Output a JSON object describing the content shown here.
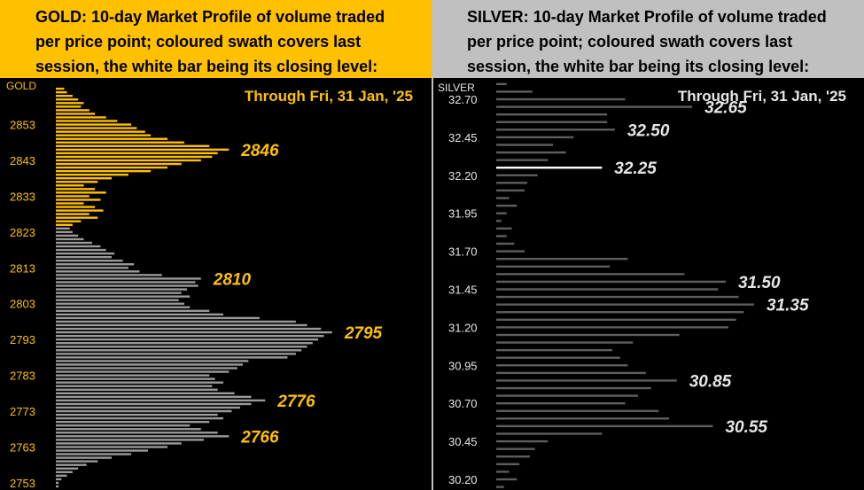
{
  "colors": {
    "gold_accent": "#ffc000",
    "gold_header_bg": "#ffc000",
    "silver_header_bg": "#c0c0c0",
    "profile_bar": "#9a9a9a",
    "silver_bar": "#5e5e5e",
    "close_bar": "#ffffff",
    "background": "#000000",
    "silver_text": "#e6e6e6"
  },
  "chart_data": [
    {
      "type": "bar",
      "orientation": "horizontal",
      "title": "GOLD:  10-day Market Profile of volume traded\nper price point; coloured swath covers last\nsession, the white bar being its closing level:",
      "corner_label": "GOLD",
      "date_label": "Through Fri, 31 Jan, '25",
      "ylim": [
        2751,
        2866
      ],
      "yticks": [
        2853,
        2843,
        2833,
        2823,
        2813,
        2803,
        2793,
        2783,
        2773,
        2763,
        2753
      ],
      "price_step": 1,
      "volume_max": 100,
      "closing_level": null,
      "annotations": [
        {
          "label": "2846",
          "price": 2846
        },
        {
          "label": "2810",
          "price": 2810
        },
        {
          "label": "2795",
          "price": 2795
        },
        {
          "label": "2776",
          "price": 2776
        },
        {
          "label": "2766",
          "price": 2766
        }
      ],
      "bars": [
        {
          "price": 2752,
          "volume": 1,
          "last_session": false
        },
        {
          "price": 2753,
          "volume": 1,
          "last_session": false
        },
        {
          "price": 2754,
          "volume": 2,
          "last_session": false
        },
        {
          "price": 2755,
          "volume": 4,
          "last_session": false
        },
        {
          "price": 2756,
          "volume": 6,
          "last_session": false
        },
        {
          "price": 2757,
          "volume": 8,
          "last_session": false
        },
        {
          "price": 2758,
          "volume": 11,
          "last_session": false
        },
        {
          "price": 2759,
          "volume": 15,
          "last_session": false
        },
        {
          "price": 2760,
          "volume": 20,
          "last_session": false
        },
        {
          "price": 2761,
          "volume": 27,
          "last_session": false
        },
        {
          "price": 2762,
          "volume": 33,
          "last_session": false
        },
        {
          "price": 2763,
          "volume": 40,
          "last_session": false
        },
        {
          "price": 2764,
          "volume": 45,
          "last_session": false
        },
        {
          "price": 2765,
          "volume": 53,
          "last_session": false
        },
        {
          "price": 2766,
          "volume": 62,
          "last_session": false
        },
        {
          "price": 2767,
          "volume": 58,
          "last_session": false
        },
        {
          "price": 2768,
          "volume": 52,
          "last_session": false
        },
        {
          "price": 2769,
          "volume": 48,
          "last_session": false
        },
        {
          "price": 2770,
          "volume": 55,
          "last_session": false
        },
        {
          "price": 2771,
          "volume": 60,
          "last_session": false
        },
        {
          "price": 2772,
          "volume": 58,
          "last_session": false
        },
        {
          "price": 2773,
          "volume": 63,
          "last_session": false
        },
        {
          "price": 2774,
          "volume": 66,
          "last_session": false
        },
        {
          "price": 2775,
          "volume": 70,
          "last_session": false
        },
        {
          "price": 2776,
          "volume": 75,
          "last_session": false
        },
        {
          "price": 2777,
          "volume": 70,
          "last_session": false
        },
        {
          "price": 2778,
          "volume": 64,
          "last_session": false
        },
        {
          "price": 2779,
          "volume": 58,
          "last_session": false
        },
        {
          "price": 2780,
          "volume": 56,
          "last_session": false
        },
        {
          "price": 2781,
          "volume": 60,
          "last_session": false
        },
        {
          "price": 2782,
          "volume": 57,
          "last_session": false
        },
        {
          "price": 2783,
          "volume": 55,
          "last_session": false
        },
        {
          "price": 2784,
          "volume": 62,
          "last_session": false
        },
        {
          "price": 2785,
          "volume": 65,
          "last_session": false
        },
        {
          "price": 2786,
          "volume": 67,
          "last_session": false
        },
        {
          "price": 2787,
          "volume": 69,
          "last_session": false
        },
        {
          "price": 2788,
          "volume": 83,
          "last_session": false
        },
        {
          "price": 2789,
          "volume": 86,
          "last_session": false
        },
        {
          "price": 2790,
          "volume": 88,
          "last_session": false
        },
        {
          "price": 2791,
          "volume": 90,
          "last_session": false
        },
        {
          "price": 2792,
          "volume": 92,
          "last_session": false
        },
        {
          "price": 2793,
          "volume": 94,
          "last_session": false
        },
        {
          "price": 2794,
          "volume": 96,
          "last_session": false
        },
        {
          "price": 2795,
          "volume": 99,
          "last_session": false
        },
        {
          "price": 2796,
          "volume": 95,
          "last_session": false
        },
        {
          "price": 2797,
          "volume": 90,
          "last_session": false
        },
        {
          "price": 2798,
          "volume": 86,
          "last_session": false
        },
        {
          "price": 2799,
          "volume": 73,
          "last_session": false
        },
        {
          "price": 2800,
          "volume": 60,
          "last_session": false
        },
        {
          "price": 2801,
          "volume": 55,
          "last_session": false
        },
        {
          "price": 2802,
          "volume": 48,
          "last_session": false
        },
        {
          "price": 2803,
          "volume": 46,
          "last_session": false
        },
        {
          "price": 2804,
          "volume": 44,
          "last_session": false
        },
        {
          "price": 2805,
          "volume": 48,
          "last_session": false
        },
        {
          "price": 2806,
          "volume": 45,
          "last_session": false
        },
        {
          "price": 2807,
          "volume": 47,
          "last_session": false
        },
        {
          "price": 2808,
          "volume": 51,
          "last_session": false
        },
        {
          "price": 2809,
          "volume": 50,
          "last_session": false
        },
        {
          "price": 2810,
          "volume": 52,
          "last_session": false
        },
        {
          "price": 2811,
          "volume": 38,
          "last_session": false
        },
        {
          "price": 2812,
          "volume": 30,
          "last_session": false
        },
        {
          "price": 2813,
          "volume": 26,
          "last_session": false
        },
        {
          "price": 2814,
          "volume": 28,
          "last_session": false
        },
        {
          "price": 2815,
          "volume": 24,
          "last_session": false
        },
        {
          "price": 2816,
          "volume": 20,
          "last_session": false
        },
        {
          "price": 2817,
          "volume": 21,
          "last_session": false
        },
        {
          "price": 2818,
          "volume": 18,
          "last_session": false
        },
        {
          "price": 2819,
          "volume": 16,
          "last_session": false
        },
        {
          "price": 2820,
          "volume": 13,
          "last_session": false
        },
        {
          "price": 2821,
          "volume": 10,
          "last_session": false
        },
        {
          "price": 2822,
          "volume": 8,
          "last_session": false
        },
        {
          "price": 2823,
          "volume": 6,
          "last_session": false
        },
        {
          "price": 2824,
          "volume": 5,
          "last_session": false
        },
        {
          "price": 2825,
          "volume": 6,
          "last_session": true
        },
        {
          "price": 2826,
          "volume": 9,
          "last_session": true
        },
        {
          "price": 2827,
          "volume": 15,
          "last_session": true
        },
        {
          "price": 2828,
          "volume": 12,
          "last_session": true
        },
        {
          "price": 2829,
          "volume": 17,
          "last_session": true
        },
        {
          "price": 2830,
          "volume": 14,
          "last_session": true
        },
        {
          "price": 2831,
          "volume": 10,
          "last_session": true
        },
        {
          "price": 2832,
          "volume": 16,
          "last_session": true
        },
        {
          "price": 2833,
          "volume": 12,
          "last_session": true
        },
        {
          "price": 2834,
          "volume": 18,
          "last_session": true
        },
        {
          "price": 2835,
          "volume": 14,
          "last_session": true
        },
        {
          "price": 2836,
          "volume": 10,
          "last_session": true
        },
        {
          "price": 2837,
          "volume": 15,
          "last_session": true
        },
        {
          "price": 2838,
          "volume": 20,
          "last_session": true
        },
        {
          "price": 2839,
          "volume": 26,
          "last_session": true
        },
        {
          "price": 2840,
          "volume": 34,
          "last_session": true
        },
        {
          "price": 2841,
          "volume": 40,
          "last_session": true
        },
        {
          "price": 2842,
          "volume": 45,
          "last_session": true
        },
        {
          "price": 2843,
          "volume": 52,
          "last_session": true
        },
        {
          "price": 2844,
          "volume": 56,
          "last_session": true
        },
        {
          "price": 2845,
          "volume": 58,
          "last_session": true
        },
        {
          "price": 2846,
          "volume": 62,
          "last_session": true
        },
        {
          "price": 2847,
          "volume": 55,
          "last_session": true
        },
        {
          "price": 2848,
          "volume": 46,
          "last_session": true
        },
        {
          "price": 2849,
          "volume": 40,
          "last_session": true
        },
        {
          "price": 2850,
          "volume": 34,
          "last_session": true
        },
        {
          "price": 2851,
          "volume": 32,
          "last_session": true
        },
        {
          "price": 2852,
          "volume": 29,
          "last_session": true
        },
        {
          "price": 2853,
          "volume": 27,
          "last_session": true
        },
        {
          "price": 2854,
          "volume": 22,
          "last_session": true
        },
        {
          "price": 2855,
          "volume": 18,
          "last_session": true
        },
        {
          "price": 2856,
          "volume": 14,
          "last_session": true
        },
        {
          "price": 2857,
          "volume": 12,
          "last_session": true
        },
        {
          "price": 2858,
          "volume": 9,
          "last_session": true
        },
        {
          "price": 2859,
          "volume": 10,
          "last_session": true
        },
        {
          "price": 2860,
          "volume": 8,
          "last_session": true
        },
        {
          "price": 2861,
          "volume": 6,
          "last_session": true
        },
        {
          "price": 2862,
          "volume": 4,
          "last_session": true
        },
        {
          "price": 2863,
          "volume": 3,
          "last_session": true
        }
      ]
    },
    {
      "type": "bar",
      "orientation": "horizontal",
      "title": "SILVER:  10-day Market Profile of volume traded\nper price point; coloured swath covers last\nsession, the white bar being its closing level:",
      "corner_label": "SILVER",
      "date_label": "Through Fri, 31 Jan, '25",
      "ylim": [
        30.13,
        32.84
      ],
      "yticks": [
        32.7,
        32.45,
        32.2,
        31.95,
        31.7,
        31.45,
        31.2,
        30.95,
        30.7,
        30.45,
        30.2
      ],
      "price_step": 0.05,
      "volume_max": 100,
      "closing_level": 32.25,
      "annotations": [
        {
          "label": "32.65",
          "price": 32.65
        },
        {
          "label": "32.50",
          "price": 32.5
        },
        {
          "label": "32.25",
          "price": 32.25
        },
        {
          "label": "31.50",
          "price": 31.5
        },
        {
          "label": "31.35",
          "price": 31.35
        },
        {
          "label": "30.85",
          "price": 30.85
        },
        {
          "label": "30.55",
          "price": 30.55
        }
      ],
      "bars": [
        {
          "price": 30.15,
          "volume": 3
        },
        {
          "price": 30.2,
          "volume": 8
        },
        {
          "price": 30.25,
          "volume": 5
        },
        {
          "price": 30.3,
          "volume": 9
        },
        {
          "price": 30.35,
          "volume": 13
        },
        {
          "price": 30.4,
          "volume": 15
        },
        {
          "price": 30.45,
          "volume": 20
        },
        {
          "price": 30.5,
          "volume": 41
        },
        {
          "price": 30.55,
          "volume": 84
        },
        {
          "price": 30.6,
          "volume": 67
        },
        {
          "price": 30.65,
          "volume": 63
        },
        {
          "price": 30.7,
          "volume": 50
        },
        {
          "price": 30.75,
          "volume": 55
        },
        {
          "price": 30.8,
          "volume": 60
        },
        {
          "price": 30.85,
          "volume": 70
        },
        {
          "price": 30.9,
          "volume": 58
        },
        {
          "price": 30.95,
          "volume": 51
        },
        {
          "price": 31.0,
          "volume": 48
        },
        {
          "price": 31.05,
          "volume": 45
        },
        {
          "price": 31.1,
          "volume": 53
        },
        {
          "price": 31.15,
          "volume": 71
        },
        {
          "price": 31.2,
          "volume": 90
        },
        {
          "price": 31.25,
          "volume": 93
        },
        {
          "price": 31.3,
          "volume": 96
        },
        {
          "price": 31.35,
          "volume": 100
        },
        {
          "price": 31.4,
          "volume": 94
        },
        {
          "price": 31.45,
          "volume": 86
        },
        {
          "price": 31.5,
          "volume": 89
        },
        {
          "price": 31.55,
          "volume": 73
        },
        {
          "price": 31.6,
          "volume": 44
        },
        {
          "price": 31.65,
          "volume": 51
        },
        {
          "price": 31.7,
          "volume": 11
        },
        {
          "price": 31.75,
          "volume": 7
        },
        {
          "price": 31.8,
          "volume": 4
        },
        {
          "price": 31.85,
          "volume": 6
        },
        {
          "price": 31.9,
          "volume": 2
        },
        {
          "price": 31.95,
          "volume": 4
        },
        {
          "price": 32.0,
          "volume": 8
        },
        {
          "price": 32.05,
          "volume": 5
        },
        {
          "price": 32.1,
          "volume": 11
        },
        {
          "price": 32.15,
          "volume": 12
        },
        {
          "price": 32.2,
          "volume": 16
        },
        {
          "price": 32.25,
          "volume": 41
        },
        {
          "price": 32.3,
          "volume": 20
        },
        {
          "price": 32.35,
          "volume": 27
        },
        {
          "price": 32.4,
          "volume": 22
        },
        {
          "price": 32.45,
          "volume": 30
        },
        {
          "price": 32.5,
          "volume": 46
        },
        {
          "price": 32.55,
          "volume": 43
        },
        {
          "price": 32.6,
          "volume": 43
        },
        {
          "price": 32.65,
          "volume": 76
        },
        {
          "price": 32.7,
          "volume": 50
        },
        {
          "price": 32.75,
          "volume": 14
        },
        {
          "price": 32.8,
          "volume": 4
        }
      ]
    }
  ]
}
